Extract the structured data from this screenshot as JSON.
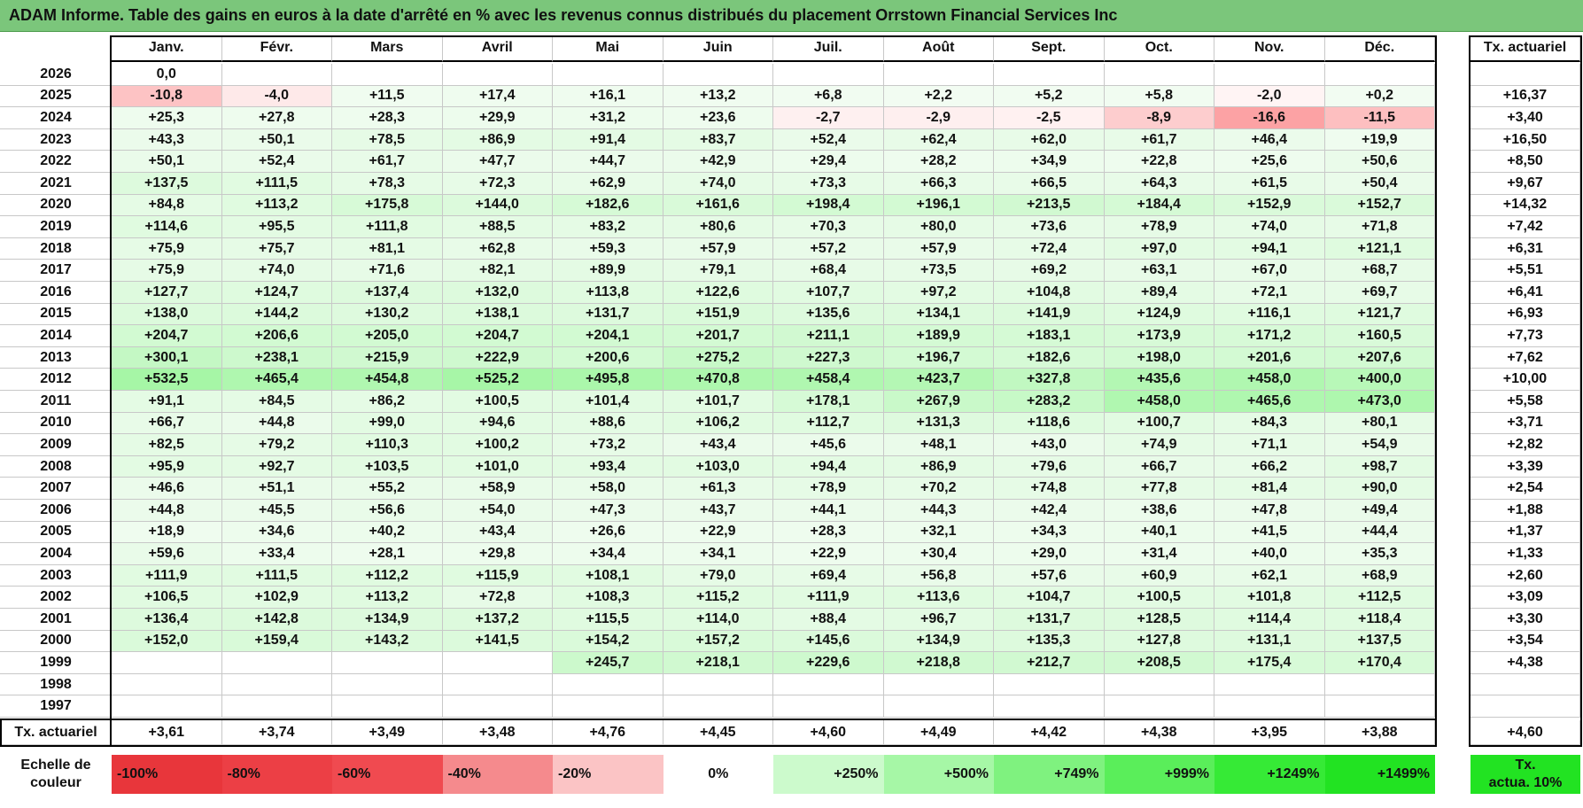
{
  "title": "ADAM Informe. Table des gains en euros à la date d'arrêté en % avec les revenus connus distribués du placement Orrstown Financial Services Inc",
  "chart_data": {
    "type": "table",
    "columns": [
      "Janv.",
      "Févr.",
      "Mars",
      "Avril",
      "Mai",
      "Juin",
      "Juil.",
      "Août",
      "Sept.",
      "Oct.",
      "Nov.",
      "Déc."
    ],
    "rate_column_label": "Tx. actuariel",
    "rows": [
      {
        "year": "2026",
        "values": [
          "0,0",
          "",
          "",
          "",
          "",
          "",
          "",
          "",
          "",
          "",
          "",
          ""
        ],
        "rate": ""
      },
      {
        "year": "2025",
        "values": [
          "-10,8",
          "-4,0",
          "+11,5",
          "+17,4",
          "+16,1",
          "+13,2",
          "+6,8",
          "+2,2",
          "+5,2",
          "+5,8",
          "-2,0",
          "+0,2"
        ],
        "rate": "+16,37"
      },
      {
        "year": "2024",
        "values": [
          "+25,3",
          "+27,8",
          "+28,3",
          "+29,9",
          "+31,2",
          "+23,6",
          "-2,7",
          "-2,9",
          "-2,5",
          "-8,9",
          "-16,6",
          "-11,5"
        ],
        "rate": "+3,40"
      },
      {
        "year": "2023",
        "values": [
          "+43,3",
          "+50,1",
          "+78,5",
          "+86,9",
          "+91,4",
          "+83,7",
          "+52,4",
          "+62,4",
          "+62,0",
          "+61,7",
          "+46,4",
          "+19,9"
        ],
        "rate": "+16,50"
      },
      {
        "year": "2022",
        "values": [
          "+50,1",
          "+52,4",
          "+61,7",
          "+47,7",
          "+44,7",
          "+42,9",
          "+29,4",
          "+28,2",
          "+34,9",
          "+22,8",
          "+25,6",
          "+50,6"
        ],
        "rate": "+8,50"
      },
      {
        "year": "2021",
        "values": [
          "+137,5",
          "+111,5",
          "+78,3",
          "+72,3",
          "+62,9",
          "+74,0",
          "+73,3",
          "+66,3",
          "+66,5",
          "+64,3",
          "+61,5",
          "+50,4"
        ],
        "rate": "+9,67"
      },
      {
        "year": "2020",
        "values": [
          "+84,8",
          "+113,2",
          "+175,8",
          "+144,0",
          "+182,6",
          "+161,6",
          "+198,4",
          "+196,1",
          "+213,5",
          "+184,4",
          "+152,9",
          "+152,7"
        ],
        "rate": "+14,32"
      },
      {
        "year": "2019",
        "values": [
          "+114,6",
          "+95,5",
          "+111,8",
          "+88,5",
          "+83,2",
          "+80,6",
          "+70,3",
          "+80,0",
          "+73,6",
          "+78,9",
          "+74,0",
          "+71,8"
        ],
        "rate": "+7,42"
      },
      {
        "year": "2018",
        "values": [
          "+75,9",
          "+75,7",
          "+81,1",
          "+62,8",
          "+59,3",
          "+57,9",
          "+57,2",
          "+57,9",
          "+72,4",
          "+97,0",
          "+94,1",
          "+121,1"
        ],
        "rate": "+6,31"
      },
      {
        "year": "2017",
        "values": [
          "+75,9",
          "+74,0",
          "+71,6",
          "+82,1",
          "+89,9",
          "+79,1",
          "+68,4",
          "+73,5",
          "+69,2",
          "+63,1",
          "+67,0",
          "+68,7"
        ],
        "rate": "+5,51"
      },
      {
        "year": "2016",
        "values": [
          "+127,7",
          "+124,7",
          "+137,4",
          "+132,0",
          "+113,8",
          "+122,6",
          "+107,7",
          "+97,2",
          "+104,8",
          "+89,4",
          "+72,1",
          "+69,7"
        ],
        "rate": "+6,41"
      },
      {
        "year": "2015",
        "values": [
          "+138,0",
          "+144,2",
          "+130,2",
          "+138,1",
          "+131,7",
          "+151,9",
          "+135,6",
          "+134,1",
          "+141,9",
          "+124,9",
          "+116,1",
          "+121,7"
        ],
        "rate": "+6,93"
      },
      {
        "year": "2014",
        "values": [
          "+204,7",
          "+206,6",
          "+205,0",
          "+204,7",
          "+204,1",
          "+201,7",
          "+211,1",
          "+189,9",
          "+183,1",
          "+173,9",
          "+171,2",
          "+160,5"
        ],
        "rate": "+7,73"
      },
      {
        "year": "2013",
        "values": [
          "+300,1",
          "+238,1",
          "+215,9",
          "+222,9",
          "+200,6",
          "+275,2",
          "+227,3",
          "+196,7",
          "+182,6",
          "+198,0",
          "+201,6",
          "+207,6"
        ],
        "rate": "+7,62"
      },
      {
        "year": "2012",
        "values": [
          "+532,5",
          "+465,4",
          "+454,8",
          "+525,2",
          "+495,8",
          "+470,8",
          "+458,4",
          "+423,7",
          "+327,8",
          "+435,6",
          "+458,0",
          "+400,0"
        ],
        "rate": "+10,00"
      },
      {
        "year": "2011",
        "values": [
          "+91,1",
          "+84,5",
          "+86,2",
          "+100,5",
          "+101,4",
          "+101,7",
          "+178,1",
          "+267,9",
          "+283,2",
          "+458,0",
          "+465,6",
          "+473,0"
        ],
        "rate": "+5,58"
      },
      {
        "year": "2010",
        "values": [
          "+66,7",
          "+44,8",
          "+99,0",
          "+94,6",
          "+88,6",
          "+106,2",
          "+112,7",
          "+131,3",
          "+118,6",
          "+100,7",
          "+84,3",
          "+80,1"
        ],
        "rate": "+3,71"
      },
      {
        "year": "2009",
        "values": [
          "+82,5",
          "+79,2",
          "+110,3",
          "+100,2",
          "+73,2",
          "+43,4",
          "+45,6",
          "+48,1",
          "+43,0",
          "+74,9",
          "+71,1",
          "+54,9"
        ],
        "rate": "+2,82"
      },
      {
        "year": "2008",
        "values": [
          "+95,9",
          "+92,7",
          "+103,5",
          "+101,0",
          "+93,4",
          "+103,0",
          "+94,4",
          "+86,9",
          "+79,6",
          "+66,7",
          "+66,2",
          "+98,7"
        ],
        "rate": "+3,39"
      },
      {
        "year": "2007",
        "values": [
          "+46,6",
          "+51,1",
          "+55,2",
          "+58,9",
          "+58,0",
          "+61,3",
          "+78,9",
          "+70,2",
          "+74,8",
          "+77,8",
          "+81,4",
          "+90,0"
        ],
        "rate": "+2,54"
      },
      {
        "year": "2006",
        "values": [
          "+44,8",
          "+45,5",
          "+56,6",
          "+54,0",
          "+47,3",
          "+43,7",
          "+44,1",
          "+44,3",
          "+42,4",
          "+38,6",
          "+47,8",
          "+49,4"
        ],
        "rate": "+1,88"
      },
      {
        "year": "2005",
        "values": [
          "+18,9",
          "+34,6",
          "+40,2",
          "+43,4",
          "+26,6",
          "+22,9",
          "+28,3",
          "+32,1",
          "+34,3",
          "+40,1",
          "+41,5",
          "+44,4"
        ],
        "rate": "+1,37"
      },
      {
        "year": "2004",
        "values": [
          "+59,6",
          "+33,4",
          "+28,1",
          "+29,8",
          "+34,4",
          "+34,1",
          "+22,9",
          "+30,4",
          "+29,0",
          "+31,4",
          "+40,0",
          "+35,3"
        ],
        "rate": "+1,33"
      },
      {
        "year": "2003",
        "values": [
          "+111,9",
          "+111,5",
          "+112,2",
          "+115,9",
          "+108,1",
          "+79,0",
          "+69,4",
          "+56,8",
          "+57,6",
          "+60,9",
          "+62,1",
          "+68,9"
        ],
        "rate": "+2,60"
      },
      {
        "year": "2002",
        "values": [
          "+106,5",
          "+102,9",
          "+113,2",
          "+72,8",
          "+108,3",
          "+115,2",
          "+111,9",
          "+113,6",
          "+104,7",
          "+100,5",
          "+101,8",
          "+112,5"
        ],
        "rate": "+3,09"
      },
      {
        "year": "2001",
        "values": [
          "+136,4",
          "+142,8",
          "+134,9",
          "+137,2",
          "+115,5",
          "+114,0",
          "+88,4",
          "+96,7",
          "+131,7",
          "+128,5",
          "+114,4",
          "+118,4"
        ],
        "rate": "+3,30"
      },
      {
        "year": "2000",
        "values": [
          "+152,0",
          "+159,4",
          "+143,2",
          "+141,5",
          "+154,2",
          "+157,2",
          "+145,6",
          "+134,9",
          "+135,3",
          "+127,8",
          "+131,1",
          "+137,5"
        ],
        "rate": "+3,54"
      },
      {
        "year": "1999",
        "values": [
          "",
          "",
          "",
          "",
          "+245,7",
          "+218,1",
          "+229,6",
          "+218,8",
          "+212,7",
          "+208,5",
          "+175,4",
          "+170,4"
        ],
        "rate": "+4,38"
      },
      {
        "year": "1998",
        "values": [
          "",
          "",
          "",
          "",
          "",
          "",
          "",
          "",
          "",
          "",
          "",
          ""
        ],
        "rate": ""
      },
      {
        "year": "1997",
        "values": [
          "",
          "",
          "",
          "",
          "",
          "",
          "",
          "",
          "",
          "",
          "",
          ""
        ],
        "rate": ""
      }
    ],
    "footer": {
      "label": "Tx. actuariel",
      "values": [
        "+3,61",
        "+3,74",
        "+3,49",
        "+3,48",
        "+4,76",
        "+4,45",
        "+4,60",
        "+4,49",
        "+4,42",
        "+4,38",
        "+3,95",
        "+3,88"
      ],
      "rate": "+4,60"
    },
    "color_scale": {
      "label_line1": "Echelle de",
      "label_line2": "couleur",
      "items": [
        {
          "text": "-100%",
          "value": -100,
          "color": "#e8363b"
        },
        {
          "text": "-80%",
          "value": -80,
          "color": "#ec3f45"
        },
        {
          "text": "-60%",
          "value": -60,
          "color": "#f04a50"
        },
        {
          "text": "-40%",
          "value": -40,
          "color": "#f58a8d"
        },
        {
          "text": "-20%",
          "value": -20,
          "color": "#fbc4c5"
        },
        {
          "text": "0%",
          "value": 0,
          "color": "#ffffff"
        },
        {
          "text": "+250%",
          "value": 250,
          "color": "#ccfacc"
        },
        {
          "text": "+500%",
          "value": 500,
          "color": "#a6f7a6"
        },
        {
          "text": "+749%",
          "value": 749,
          "color": "#7ff27f"
        },
        {
          "text": "+999%",
          "value": 999,
          "color": "#5aee5a"
        },
        {
          "text": "+1249%",
          "value": 1249,
          "color": "#36ea36"
        },
        {
          "text": "+1499%",
          "value": 1499,
          "color": "#22e322"
        }
      ],
      "rate_label_line1": "Tx.",
      "rate_label_line2": "actua. 10%",
      "rate_color": "#22e322"
    }
  }
}
